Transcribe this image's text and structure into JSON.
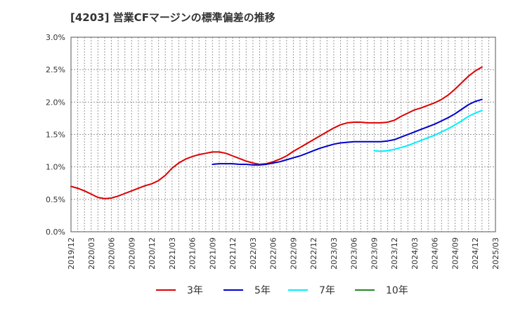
{
  "chart_data": {
    "type": "line",
    "title": "[4203]  営業CFマージンの標準偏差の推移",
    "xlabel": "",
    "ylabel": "",
    "x_ticks": [
      "2019/12",
      "2020/03",
      "2020/06",
      "2020/09",
      "2020/12",
      "2021/03",
      "2021/06",
      "2021/09",
      "2021/12",
      "2022/03",
      "2022/06",
      "2022/09",
      "2022/12",
      "2023/03",
      "2023/06",
      "2023/09",
      "2023/12",
      "2024/03",
      "2024/06",
      "2024/09",
      "2024/12",
      "2025/03"
    ],
    "y_ticks": [
      "0.0%",
      "0.5%",
      "1.0%",
      "1.5%",
      "2.0%",
      "2.5%",
      "3.0%"
    ],
    "ylim": [
      0,
      3.0
    ],
    "grid": true,
    "legend_position": "bottom",
    "series": [
      {
        "name": "3年",
        "color": "#dd0000",
        "points": [
          [
            "2019/12",
            0.7
          ],
          [
            "2020/01",
            0.67
          ],
          [
            "2020/02",
            0.63
          ],
          [
            "2020/03",
            0.58
          ],
          [
            "2020/04",
            0.53
          ],
          [
            "2020/05",
            0.51
          ],
          [
            "2020/06",
            0.52
          ],
          [
            "2020/07",
            0.55
          ],
          [
            "2020/08",
            0.59
          ],
          [
            "2020/09",
            0.63
          ],
          [
            "2020/10",
            0.67
          ],
          [
            "2020/11",
            0.71
          ],
          [
            "2020/12",
            0.74
          ],
          [
            "2021/01",
            0.79
          ],
          [
            "2021/02",
            0.87
          ],
          [
            "2021/03",
            0.98
          ],
          [
            "2021/04",
            1.06
          ],
          [
            "2021/05",
            1.12
          ],
          [
            "2021/06",
            1.16
          ],
          [
            "2021/07",
            1.19
          ],
          [
            "2021/08",
            1.21
          ],
          [
            "2021/09",
            1.23
          ],
          [
            "2021/10",
            1.23
          ],
          [
            "2021/11",
            1.21
          ],
          [
            "2021/12",
            1.17
          ],
          [
            "2022/01",
            1.13
          ],
          [
            "2022/02",
            1.09
          ],
          [
            "2022/03",
            1.06
          ],
          [
            "2022/04",
            1.04
          ],
          [
            "2022/05",
            1.05
          ],
          [
            "2022/06",
            1.08
          ],
          [
            "2022/07",
            1.12
          ],
          [
            "2022/08",
            1.17
          ],
          [
            "2022/09",
            1.24
          ],
          [
            "2022/10",
            1.3
          ],
          [
            "2022/11",
            1.36
          ],
          [
            "2022/12",
            1.42
          ],
          [
            "2023/01",
            1.48
          ],
          [
            "2023/02",
            1.54
          ],
          [
            "2023/03",
            1.6
          ],
          [
            "2023/04",
            1.65
          ],
          [
            "2023/05",
            1.68
          ],
          [
            "2023/06",
            1.69
          ],
          [
            "2023/07",
            1.69
          ],
          [
            "2023/08",
            1.68
          ],
          [
            "2023/09",
            1.68
          ],
          [
            "2023/10",
            1.68
          ],
          [
            "2023/11",
            1.69
          ],
          [
            "2023/12",
            1.72
          ],
          [
            "2024/01",
            1.78
          ],
          [
            "2024/02",
            1.83
          ],
          [
            "2024/03",
            1.88
          ],
          [
            "2024/04",
            1.91
          ],
          [
            "2024/05",
            1.95
          ],
          [
            "2024/06",
            1.99
          ],
          [
            "2024/07",
            2.04
          ],
          [
            "2024/08",
            2.11
          ],
          [
            "2024/09",
            2.2
          ],
          [
            "2024/10",
            2.3
          ],
          [
            "2024/11",
            2.4
          ],
          [
            "2024/12",
            2.48
          ],
          [
            "2025/01",
            2.54
          ]
        ]
      },
      {
        "name": "5年",
        "color": "#0000cc",
        "points": [
          [
            "2021/09",
            1.04
          ],
          [
            "2021/10",
            1.05
          ],
          [
            "2021/11",
            1.05
          ],
          [
            "2021/12",
            1.05
          ],
          [
            "2022/01",
            1.04
          ],
          [
            "2022/02",
            1.04
          ],
          [
            "2022/03",
            1.03
          ],
          [
            "2022/04",
            1.03
          ],
          [
            "2022/05",
            1.04
          ],
          [
            "2022/06",
            1.06
          ],
          [
            "2022/07",
            1.08
          ],
          [
            "2022/08",
            1.11
          ],
          [
            "2022/09",
            1.14
          ],
          [
            "2022/10",
            1.17
          ],
          [
            "2022/11",
            1.21
          ],
          [
            "2022/12",
            1.25
          ],
          [
            "2023/01",
            1.29
          ],
          [
            "2023/02",
            1.32
          ],
          [
            "2023/03",
            1.35
          ],
          [
            "2023/04",
            1.37
          ],
          [
            "2023/05",
            1.38
          ],
          [
            "2023/06",
            1.39
          ],
          [
            "2023/07",
            1.39
          ],
          [
            "2023/08",
            1.39
          ],
          [
            "2023/09",
            1.39
          ],
          [
            "2023/10",
            1.39
          ],
          [
            "2023/11",
            1.4
          ],
          [
            "2023/12",
            1.42
          ],
          [
            "2024/01",
            1.46
          ],
          [
            "2024/02",
            1.5
          ],
          [
            "2024/03",
            1.54
          ],
          [
            "2024/04",
            1.58
          ],
          [
            "2024/05",
            1.62
          ],
          [
            "2024/06",
            1.66
          ],
          [
            "2024/07",
            1.71
          ],
          [
            "2024/08",
            1.76
          ],
          [
            "2024/09",
            1.82
          ],
          [
            "2024/10",
            1.89
          ],
          [
            "2024/11",
            1.96
          ],
          [
            "2024/12",
            2.01
          ],
          [
            "2025/01",
            2.04
          ]
        ]
      },
      {
        "name": "7年",
        "color": "#00eeff",
        "points": [
          [
            "2023/09",
            1.25
          ],
          [
            "2023/10",
            1.24
          ],
          [
            "2023/11",
            1.25
          ],
          [
            "2023/12",
            1.27
          ],
          [
            "2024/01",
            1.3
          ],
          [
            "2024/02",
            1.33
          ],
          [
            "2024/03",
            1.37
          ],
          [
            "2024/04",
            1.41
          ],
          [
            "2024/05",
            1.45
          ],
          [
            "2024/06",
            1.49
          ],
          [
            "2024/07",
            1.54
          ],
          [
            "2024/08",
            1.59
          ],
          [
            "2024/09",
            1.65
          ],
          [
            "2024/10",
            1.71
          ],
          [
            "2024/11",
            1.78
          ],
          [
            "2024/12",
            1.83
          ],
          [
            "2025/01",
            1.87
          ]
        ]
      },
      {
        "name": "10年",
        "color": "#228822",
        "points": []
      }
    ]
  }
}
